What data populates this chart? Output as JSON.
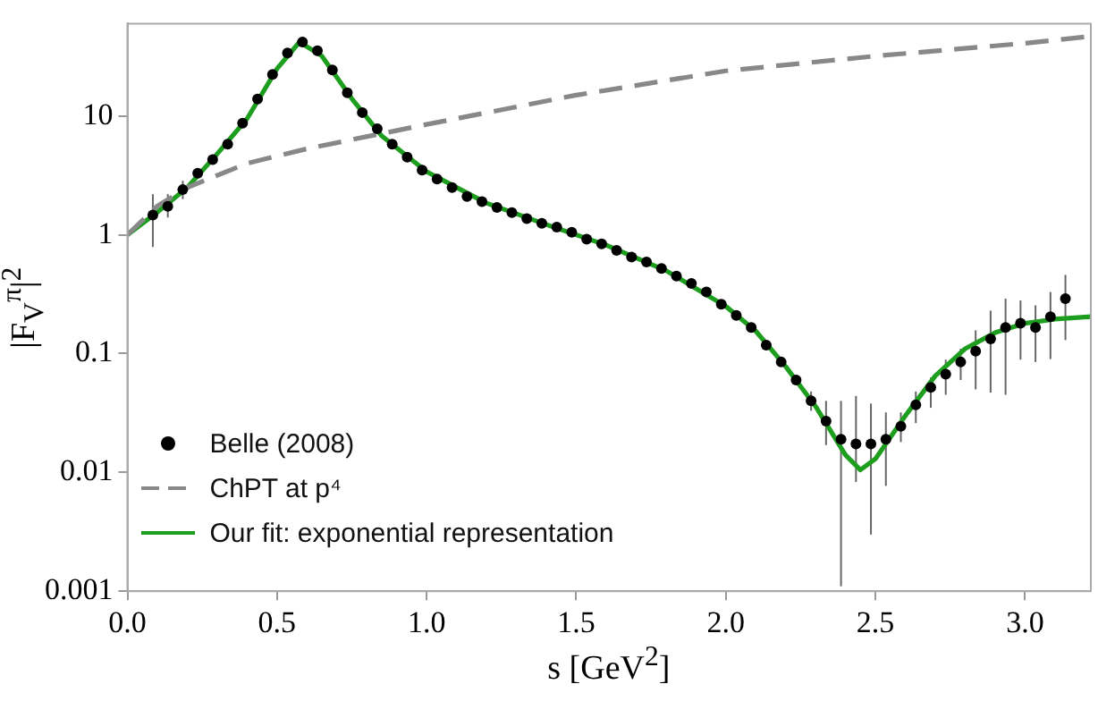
{
  "chart_data": {
    "type": "line",
    "xlabel": "s [GeV$^{2}$]",
    "ylabel": "|F$_{V}$$^{π}$|$^{2}$",
    "log": "y",
    "grid": false,
    "legend": "bottom left",
    "xlim": [
      0,
      3.22
    ],
    "xticks": [
      {
        "value": 0,
        "label": "0.0"
      },
      {
        "value": 0.5,
        "label": "0.5"
      },
      {
        "value": 1,
        "label": "1.0"
      },
      {
        "value": 1.5,
        "label": "1.5"
      },
      {
        "value": 2,
        "label": "2.0"
      },
      {
        "value": 2.5,
        "label": "2.5"
      },
      {
        "value": 3,
        "label": "3.0"
      }
    ],
    "ylim": [
      0.001,
      60
    ],
    "yticks": [
      0.001,
      0.01,
      0.1,
      1,
      10
    ],
    "series": [
      {
        "name": "Belle (2008)",
        "type": "scatter",
        "marker": "circle",
        "color": "#000000",
        "x": [
          0.085,
          0.135,
          0.185,
          0.235,
          0.285,
          0.335,
          0.385,
          0.435,
          0.485,
          0.535,
          0.585,
          0.635,
          0.685,
          0.735,
          0.785,
          0.835,
          0.885,
          0.935,
          0.985,
          1.035,
          1.085,
          1.135,
          1.185,
          1.235,
          1.285,
          1.335,
          1.385,
          1.435,
          1.485,
          1.535,
          1.585,
          1.635,
          1.685,
          1.735,
          1.785,
          1.835,
          1.885,
          1.935,
          1.985,
          2.035,
          2.085,
          2.135,
          2.185,
          2.235,
          2.285,
          2.335,
          2.385,
          2.435,
          2.485,
          2.535,
          2.585,
          2.635,
          2.685,
          2.735,
          2.785,
          2.835,
          2.885,
          2.935,
          2.985,
          3.035,
          3.085,
          3.135
        ],
        "values": [
          1.47,
          1.74,
          2.4,
          3.3,
          4.3,
          5.8,
          8.7,
          13.9,
          22.4,
          34,
          42,
          35.5,
          24.4,
          15.7,
          10.7,
          7.8,
          5.8,
          4.5,
          3.5,
          2.95,
          2.5,
          2.1,
          1.9,
          1.7,
          1.54,
          1.37,
          1.25,
          1.16,
          1.05,
          0.92,
          0.84,
          0.74,
          0.65,
          0.59,
          0.52,
          0.45,
          0.39,
          0.33,
          0.26,
          0.21,
          0.166,
          0.118,
          0.085,
          0.06,
          0.04,
          0.027,
          0.019,
          0.0174,
          0.0174,
          0.019,
          0.0245,
          0.037,
          0.052,
          0.067,
          0.085,
          0.105,
          0.133,
          0.166,
          0.18,
          0.166,
          0.204,
          0.29
        ],
        "errors": [
          [
            0.79,
            2.2
          ],
          [
            1.4,
            2.2
          ],
          [
            2.0,
            2.85
          ],
          null,
          null,
          null,
          null,
          null,
          null,
          null,
          null,
          null,
          null,
          null,
          null,
          null,
          null,
          null,
          null,
          null,
          null,
          null,
          null,
          null,
          null,
          null,
          null,
          null,
          null,
          null,
          null,
          null,
          null,
          null,
          null,
          null,
          null,
          null,
          null,
          null,
          null,
          null,
          null,
          null,
          [
            0.033,
            0.048
          ],
          [
            0.017,
            0.04
          ],
          [
            0.0011,
            0.04
          ],
          [
            0.0083,
            0.044
          ],
          [
            0.003,
            0.038
          ],
          [
            0.0077,
            0.032
          ],
          [
            0.018,
            0.032
          ],
          [
            0.026,
            0.048
          ],
          [
            0.035,
            0.063
          ],
          [
            0.045,
            0.089
          ],
          [
            0.06,
            0.11
          ],
          [
            0.05,
            0.157
          ],
          [
            0.047,
            0.23
          ],
          [
            0.045,
            0.29
          ],
          [
            0.089,
            0.28
          ],
          [
            0.085,
            0.255
          ],
          [
            0.09,
            0.33
          ],
          [
            0.13,
            0.46
          ]
        ]
      },
      {
        "name": "ChPT at p⁴",
        "type": "line",
        "line_style": "dashed",
        "marker": "none",
        "color": "#888888",
        "x": [
          0,
          0.1,
          0.2,
          0.4,
          0.6,
          1.0,
          1.5,
          2.0,
          2.5,
          3.0,
          3.22
        ],
        "values": [
          1,
          1.75,
          2.5,
          4,
          5.3,
          8.5,
          15,
          24,
          32,
          41,
          47
        ]
      },
      {
        "name": "Our fit: exponential representation",
        "line_style": "solid",
        "marker": "none",
        "color": "#1e9e1e",
        "x": [
          0,
          0.1,
          0.2,
          0.3,
          0.4,
          0.5,
          0.575,
          0.65,
          0.75,
          0.85,
          1.0,
          1.2,
          1.4,
          1.6,
          1.8,
          2.0,
          2.1,
          2.2,
          2.3,
          2.4,
          2.45,
          2.5,
          2.6,
          2.7,
          2.8,
          2.9,
          3.0,
          3.1,
          3.22
        ],
        "values": [
          1,
          1.55,
          2.5,
          4.8,
          9.5,
          25,
          42,
          32,
          14,
          6.8,
          3.4,
          1.85,
          1.22,
          0.82,
          0.5,
          0.25,
          0.155,
          0.078,
          0.036,
          0.014,
          0.0105,
          0.013,
          0.03,
          0.065,
          0.11,
          0.15,
          0.18,
          0.195,
          0.205
        ]
      }
    ]
  }
}
